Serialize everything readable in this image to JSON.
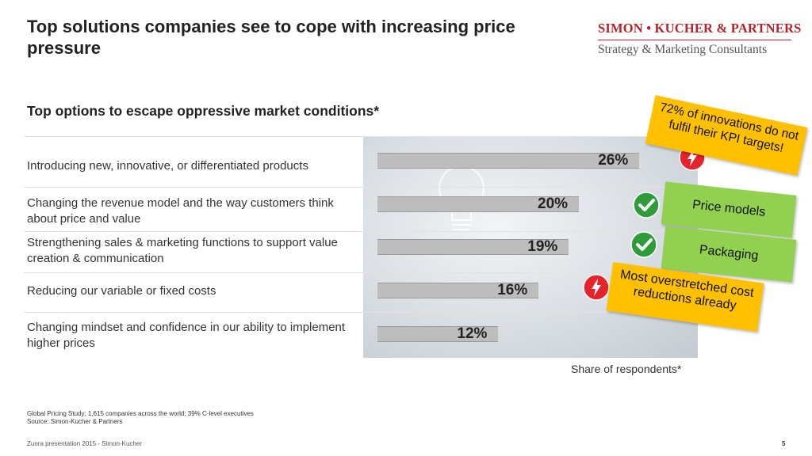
{
  "slide": {
    "title": "Top solutions companies see to cope with increasing price pressure",
    "subtitle": "Top options to escape oppressive market conditions*"
  },
  "logo": {
    "line1": "SIMON • KUCHER & PARTNERS",
    "line2": "Strategy & Marketing Consultants"
  },
  "chart_data": {
    "type": "bar",
    "orientation": "horizontal",
    "categories": [
      "Introducing new, innovative, or differentiated products",
      "Changing the revenue model and the way customers think about price and value",
      "Strengthening sales & marketing functions to support value creation & communication",
      "Reducing our variable or fixed costs",
      "Changing mindset and confidence in our ability to implement higher prices"
    ],
    "values": [
      26,
      20,
      19,
      16,
      12
    ],
    "value_labels": [
      "26%",
      "20%",
      "19%",
      "16%",
      "12%"
    ],
    "xlabel": "Share of respondents*",
    "bar_color": "#bdbdbd"
  },
  "annotations": [
    {
      "row": 0,
      "icon": "lightning-warning-icon",
      "color": "#e5232b",
      "note": "72% of innovations do not fulfil their KPI targets!",
      "note_color": "#ffc000"
    },
    {
      "row": 1,
      "icon": "checkmark-icon",
      "color": "#2e9c3a",
      "note": "Price models",
      "note_color": "#92d050"
    },
    {
      "row": 2,
      "icon": "checkmark-icon",
      "color": "#2e9c3a",
      "note": "Packaging",
      "note_color": "#92d050"
    },
    {
      "row": 3,
      "icon": "lightning-warning-icon",
      "color": "#e5232b",
      "note": "Most overstretched cost reductions already",
      "note_color": "#ffc000"
    }
  ],
  "footnote": {
    "line1": "Global Pricing Study; 1,615 companies across the world; 39% C-level executives",
    "line2": "Source: Simon-Kucher & Partners"
  },
  "footer": {
    "text": "Zuora presentation 2015 - Simon-Kucher",
    "page_number": "5"
  }
}
